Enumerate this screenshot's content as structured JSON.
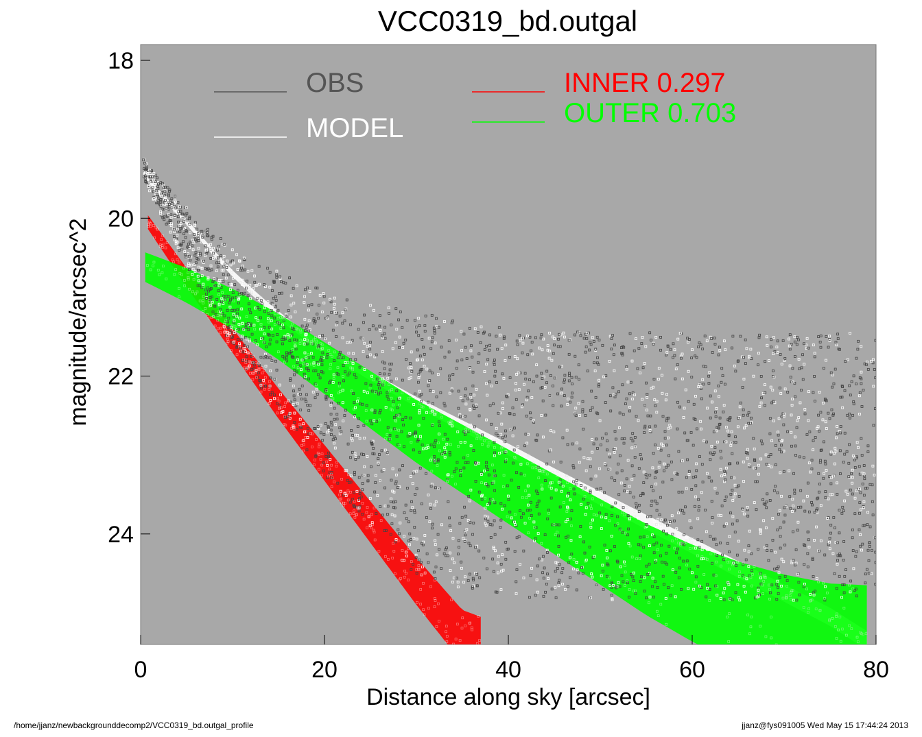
{
  "chart_data": {
    "type": "scatter",
    "title": "VCC0319_bd.outgal",
    "xlabel": "Distance along sky [arcsec]",
    "ylabel": "magnitude/arcsec^2",
    "xlim": [
      0,
      80
    ],
    "ylim": [
      25.4,
      17.8
    ],
    "y_inverted": true,
    "x_ticks": [
      0,
      20,
      40,
      60,
      80
    ],
    "y_ticks": [
      18,
      20,
      22,
      24
    ],
    "grid": false,
    "background_color": "#a8a8a8",
    "legend": {
      "placement": "top",
      "entries": [
        {
          "label": "OBS",
          "color": "#555555"
        },
        {
          "label": "MODEL",
          "color": "#ffffff"
        },
        {
          "label": "INNER  0.297",
          "color": "#ff0000"
        },
        {
          "label": "OUTER  0.703",
          "color": "#00ff00"
        }
      ]
    },
    "series": [
      {
        "name": "OBS",
        "color": "#444444",
        "points": [
          [
            0.3,
            19.3
          ],
          [
            1,
            19.45
          ],
          [
            2,
            19.6
          ],
          [
            3,
            19.75
          ],
          [
            4,
            19.9
          ],
          [
            5,
            20.05
          ],
          [
            6,
            20.2
          ],
          [
            8,
            20.45
          ],
          [
            10,
            20.7
          ],
          [
            12,
            20.9
          ],
          [
            14,
            21.05
          ],
          [
            16,
            21.2
          ],
          [
            18,
            21.35
          ],
          [
            20,
            21.5
          ],
          [
            22,
            21.65
          ],
          [
            25,
            21.8
          ],
          [
            30,
            22.0
          ],
          [
            35,
            22.15
          ],
          [
            40,
            22.25
          ],
          [
            50,
            22.3
          ],
          [
            60,
            22.3
          ],
          [
            70,
            22.3
          ],
          [
            80,
            22.3
          ]
        ]
      },
      {
        "name": "MODEL",
        "color": "#ffffff",
        "points": [
          [
            0.3,
            19.45
          ],
          [
            1,
            19.55
          ],
          [
            2,
            19.68
          ],
          [
            4,
            19.92
          ],
          [
            6,
            20.18
          ],
          [
            8,
            20.45
          ],
          [
            10,
            20.7
          ],
          [
            12,
            20.92
          ],
          [
            14,
            21.13
          ],
          [
            16,
            21.32
          ],
          [
            18,
            21.5
          ],
          [
            20,
            21.65
          ],
          [
            25,
            22.0
          ],
          [
            30,
            22.33
          ],
          [
            35,
            22.63
          ],
          [
            40,
            22.93
          ],
          [
            45,
            23.25
          ],
          [
            50,
            23.55
          ],
          [
            55,
            23.85
          ],
          [
            60,
            24.15
          ],
          [
            65,
            24.45
          ],
          [
            70,
            24.75
          ],
          [
            75,
            25.05
          ],
          [
            79,
            25.35
          ]
        ]
      },
      {
        "name": "INNER",
        "color": "#ff0000",
        "points": [
          [
            0.8,
            20.05
          ],
          [
            5,
            20.75
          ],
          [
            10,
            21.55
          ],
          [
            15,
            22.35
          ],
          [
            20,
            23.1
          ],
          [
            25,
            23.85
          ],
          [
            30,
            24.6
          ],
          [
            35,
            25.3
          ],
          [
            37,
            25.4
          ]
        ]
      },
      {
        "name": "OUTER",
        "color": "#00ff00",
        "points": [
          [
            0.5,
            20.62
          ],
          [
            5,
            20.85
          ],
          [
            10,
            21.15
          ],
          [
            15,
            21.5
          ],
          [
            20,
            21.9
          ],
          [
            25,
            22.3
          ],
          [
            30,
            22.7
          ],
          [
            35,
            23.05
          ],
          [
            40,
            23.4
          ],
          [
            45,
            23.75
          ],
          [
            50,
            24.1
          ],
          [
            55,
            24.45
          ],
          [
            60,
            24.75
          ],
          [
            65,
            25.0
          ],
          [
            70,
            25.2
          ],
          [
            75,
            25.35
          ],
          [
            79,
            25.4
          ]
        ]
      }
    ],
    "annotations": {
      "footer_left": "/home/jjanz/newbackgrounddecomp2/VCC0319_bd.outgal_profile",
      "footer_right": "jjanz@fys091005  Wed May 15 17:44:24 2013"
    }
  }
}
